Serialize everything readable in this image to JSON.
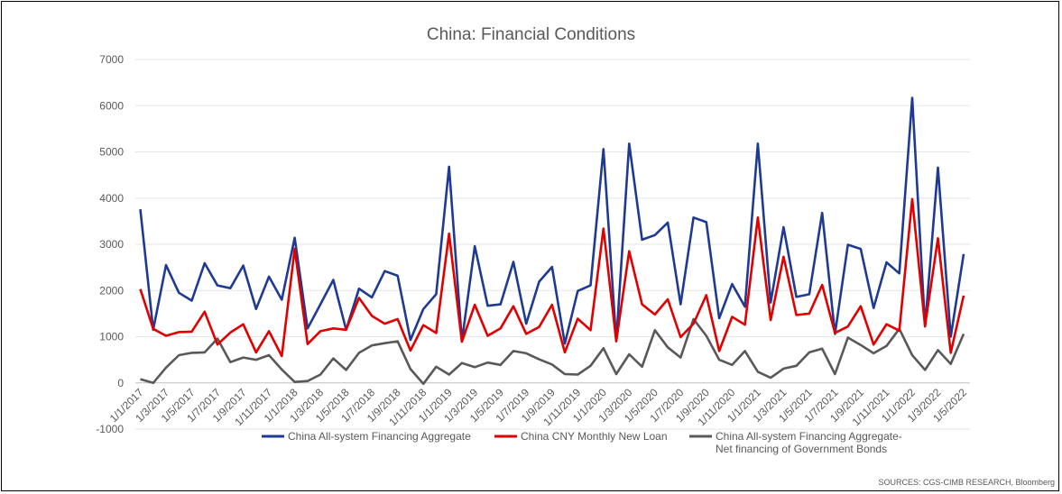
{
  "chart_data": {
    "type": "line",
    "title": "China: Financial Conditions",
    "xlabel": "",
    "ylabel": "",
    "ylim": [
      -1000,
      7000
    ],
    "yticks": [
      -1000,
      0,
      1000,
      2000,
      3000,
      4000,
      5000,
      6000,
      7000
    ],
    "grid": "horizontal",
    "legend_position": "bottom",
    "x": [
      "1/1/2017",
      "2/1/2017",
      "3/1/2017",
      "4/1/2017",
      "5/1/2017",
      "6/1/2017",
      "7/1/2017",
      "8/1/2017",
      "9/1/2017",
      "10/1/2017",
      "11/1/2017",
      "12/1/2017",
      "1/1/2018",
      "2/1/2018",
      "3/1/2018",
      "4/1/2018",
      "5/1/2018",
      "6/1/2018",
      "7/1/2018",
      "8/1/2018",
      "9/1/2018",
      "10/1/2018",
      "11/1/2018",
      "12/1/2018",
      "1/1/2019",
      "2/1/2019",
      "3/1/2019",
      "4/1/2019",
      "5/1/2019",
      "6/1/2019",
      "7/1/2019",
      "8/1/2019",
      "9/1/2019",
      "10/1/2019",
      "11/1/2019",
      "12/1/2019",
      "1/1/2020",
      "2/1/2020",
      "3/1/2020",
      "4/1/2020",
      "5/1/2020",
      "6/1/2020",
      "7/1/2020",
      "8/1/2020",
      "9/1/2020",
      "10/1/2020",
      "11/1/2020",
      "12/1/2020",
      "1/1/2021",
      "2/1/2021",
      "3/1/2021",
      "4/1/2021",
      "5/1/2021",
      "6/1/2021",
      "7/1/2021",
      "8/1/2021",
      "9/1/2021",
      "10/1/2021",
      "11/1/2021",
      "12/1/2021",
      "1/1/2022",
      "2/1/2022",
      "3/1/2022",
      "4/1/2022",
      "5/1/2022"
    ],
    "x_tick_labels": [
      "1/1/2017",
      "1/3/2017",
      "1/5/2017",
      "1/7/2017",
      "1/9/2017",
      "1/11/2017",
      "1/1/2018",
      "1/3/2018",
      "1/5/2018",
      "1/7/2018",
      "1/9/2018",
      "1/11/2018",
      "1/1/2019",
      "1/3/2019",
      "1/5/2019",
      "1/7/2019",
      "1/9/2019",
      "1/11/2019",
      "1/1/2020",
      "1/3/2020",
      "1/5/2020",
      "1/7/2020",
      "1/9/2020",
      "1/11/2020",
      "1/1/2021",
      "1/3/2021",
      "1/5/2021",
      "1/7/2021",
      "1/9/2021",
      "1/11/2021",
      "1/1/2022",
      "1/3/2022",
      "1/5/2022"
    ],
    "series": [
      {
        "name": "China All-system Financing Aggregate",
        "color": "#1f3a93",
        "values": [
          3760,
          1150,
          2550,
          1950,
          1780,
          2590,
          2110,
          2050,
          2540,
          1600,
          2300,
          1800,
          3140,
          1180,
          1700,
          2230,
          1150,
          2040,
          1850,
          2420,
          2320,
          930,
          1600,
          1920,
          4680,
          900,
          2960,
          1670,
          1700,
          2620,
          1280,
          2190,
          2510,
          850,
          1990,
          2110,
          5060,
          900,
          5180,
          3100,
          3200,
          3470,
          1700,
          3580,
          3480,
          1400,
          2140,
          1650,
          5180,
          1740,
          3370,
          1860,
          1920,
          3680,
          1060,
          2990,
          2900,
          1620,
          2610,
          2370,
          6170,
          1220,
          4660,
          1000,
          2790
        ]
      },
      {
        "name": "China CNY Monthly New Loan",
        "color": "#e00000",
        "values": [
          2030,
          1170,
          1020,
          1100,
          1110,
          1540,
          830,
          1090,
          1270,
          660,
          1120,
          580,
          2900,
          840,
          1120,
          1180,
          1150,
          1840,
          1450,
          1280,
          1380,
          700,
          1250,
          1080,
          3230,
          890,
          1690,
          1020,
          1180,
          1660,
          1060,
          1210,
          1690,
          660,
          1390,
          1140,
          3340,
          900,
          2850,
          1700,
          1480,
          1810,
          990,
          1280,
          1900,
          690,
          1430,
          1260,
          3580,
          1360,
          2730,
          1470,
          1500,
          2120,
          1080,
          1220,
          1660,
          830,
          1270,
          1130,
          3980,
          1230,
          3130,
          650,
          1890
        ]
      },
      {
        "name": "China All-system Financing Aggregate- Net financing of Government Bonds",
        "color": "#595959",
        "values": [
          80,
          0,
          330,
          600,
          650,
          660,
          960,
          450,
          550,
          500,
          600,
          290,
          20,
          40,
          180,
          530,
          280,
          650,
          810,
          860,
          900,
          300,
          -20,
          350,
          180,
          430,
          340,
          440,
          390,
          690,
          640,
          510,
          400,
          190,
          180,
          370,
          750,
          190,
          620,
          350,
          1140,
          770,
          550,
          1380,
          1020,
          500,
          390,
          690,
          240,
          110,
          310,
          370,
          660,
          740,
          190,
          980,
          820,
          640,
          800,
          1170,
          600,
          280,
          710,
          410,
          1060
        ]
      }
    ]
  },
  "legend": {
    "items": [
      {
        "label": "China All-system Financing Aggregate",
        "color": "#1f3a93"
      },
      {
        "label": "China CNY Monthly New Loan",
        "color": "#e00000"
      },
      {
        "label_line1": "China All-system Financing Aggregate-",
        "label_line2": "Net financing of Government Bonds",
        "color": "#595959"
      }
    ]
  },
  "source_text": "SOURCES: CGS-CIMB RESEARCH, Bloomberg"
}
